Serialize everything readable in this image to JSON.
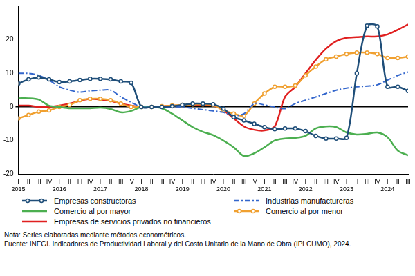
{
  "chart_data": {
    "type": "line",
    "categories": [
      [
        "I",
        "2015"
      ],
      "II",
      "III",
      "IV",
      [
        "I",
        "2016"
      ],
      "II",
      "III",
      "IV",
      [
        "I",
        "2017"
      ],
      "II",
      "III",
      "IV",
      [
        "I",
        "2018"
      ],
      "II",
      "III",
      "IV",
      [
        "I",
        "2019"
      ],
      "II",
      "III",
      "IV",
      [
        "I",
        "2020"
      ],
      "II",
      "III",
      "IV",
      [
        "I",
        "2021"
      ],
      "II",
      "III",
      "IV",
      [
        "I",
        "2022"
      ],
      "II",
      "III",
      "IV",
      [
        "I",
        "2023"
      ],
      "II",
      "III",
      "IV",
      [
        "I",
        "2024"
      ],
      "II",
      "III"
    ],
    "series": [
      {
        "name": "Empresas constructoras",
        "color": "#1f4e79",
        "marker": "circle",
        "line_style": "solid",
        "values": [
          7,
          8.2,
          8.8,
          8.2,
          7.4,
          7.6,
          8,
          8.4,
          8.4,
          8.2,
          7.6,
          7.2,
          0,
          0,
          0,
          0.2,
          0.6,
          1,
          1,
          0.8,
          -0.5,
          -3,
          -4,
          -5,
          -6,
          -6.6,
          -6.4,
          -6.4,
          -7.2,
          -8.6,
          -9.4,
          -9.4,
          -9.2,
          10,
          24.2,
          24,
          6,
          6,
          4.8
        ]
      },
      {
        "name": "Industrias manufactureras",
        "color": "#3366cc",
        "marker": "none",
        "line_style": "dashdot",
        "values": [
          10,
          10,
          9.4,
          8,
          6,
          5,
          4.4,
          4.8,
          5,
          5,
          3,
          1.4,
          0,
          0,
          -0.2,
          0,
          0,
          -0.4,
          -0.8,
          -1.2,
          -1.6,
          -2.6,
          -2,
          1,
          0.6,
          0,
          -0.5,
          1,
          2,
          3,
          4,
          5,
          5.6,
          6,
          6.2,
          6.6,
          8,
          9.4,
          10.4
        ]
      },
      {
        "name": "Comercio al por mayor",
        "color": "#4caf50",
        "marker": "none",
        "line_style": "solid",
        "values": [
          2.6,
          2.6,
          2.2,
          0.4,
          0,
          -0.4,
          -0.4,
          -0.4,
          -0.2,
          -0.6,
          -1.6,
          -1.2,
          0,
          0,
          -0.4,
          -2,
          -4,
          -6,
          -7.4,
          -8.4,
          -10,
          -12,
          -14.6,
          -13.8,
          -12,
          -10,
          -9.4,
          -9.2,
          -8.6,
          -6.4,
          -5.8,
          -6,
          -7.6,
          -8.2,
          -8,
          -7.6,
          -9,
          -13,
          -14.4
        ]
      },
      {
        "name": "Comercio al por menor",
        "color": "#f0a030",
        "marker": "circle",
        "line_style": "solid",
        "values": [
          -3.4,
          -2.4,
          -1.4,
          -1,
          0,
          0.6,
          2,
          2.4,
          2.4,
          2,
          1,
          0,
          0,
          0,
          0.2,
          0.4,
          0.6,
          0.8,
          0.8,
          0.6,
          -1,
          -2,
          -2.6,
          1,
          4,
          6,
          6,
          6.4,
          9.4,
          12,
          14.2,
          15,
          15.8,
          16.2,
          16.2,
          15.8,
          14.6,
          14.6,
          15
        ]
      },
      {
        "name": "Empresas de servicios privados no financieros",
        "color": "#e02020",
        "marker": "none",
        "line_style": "solid",
        "values": [
          0.4,
          0.4,
          0,
          0,
          0.4,
          1,
          1.8,
          2.4,
          2.2,
          1.8,
          1,
          0.4,
          0,
          0,
          0.2,
          0.4,
          0.4,
          0.6,
          0.6,
          0.4,
          -1,
          -3.4,
          -5.8,
          -6.8,
          -7,
          -5.8,
          3,
          6,
          10,
          14,
          17.4,
          19.6,
          20.6,
          20.8,
          21,
          21,
          21.6,
          23,
          24.6
        ]
      }
    ],
    "ylim": [
      -20,
      30
    ],
    "yticks": [
      -20,
      -10,
      0,
      10,
      20
    ],
    "grid": false,
    "legend": "bottom",
    "notes": [
      "Nota:    Series elaboradas mediante métodos econométricos.",
      "Fuente: INEGI. Indicadores de Productividad Laboral y del Costo Unitario de la Mano de Obra (IPLCUMO), 2024."
    ]
  }
}
